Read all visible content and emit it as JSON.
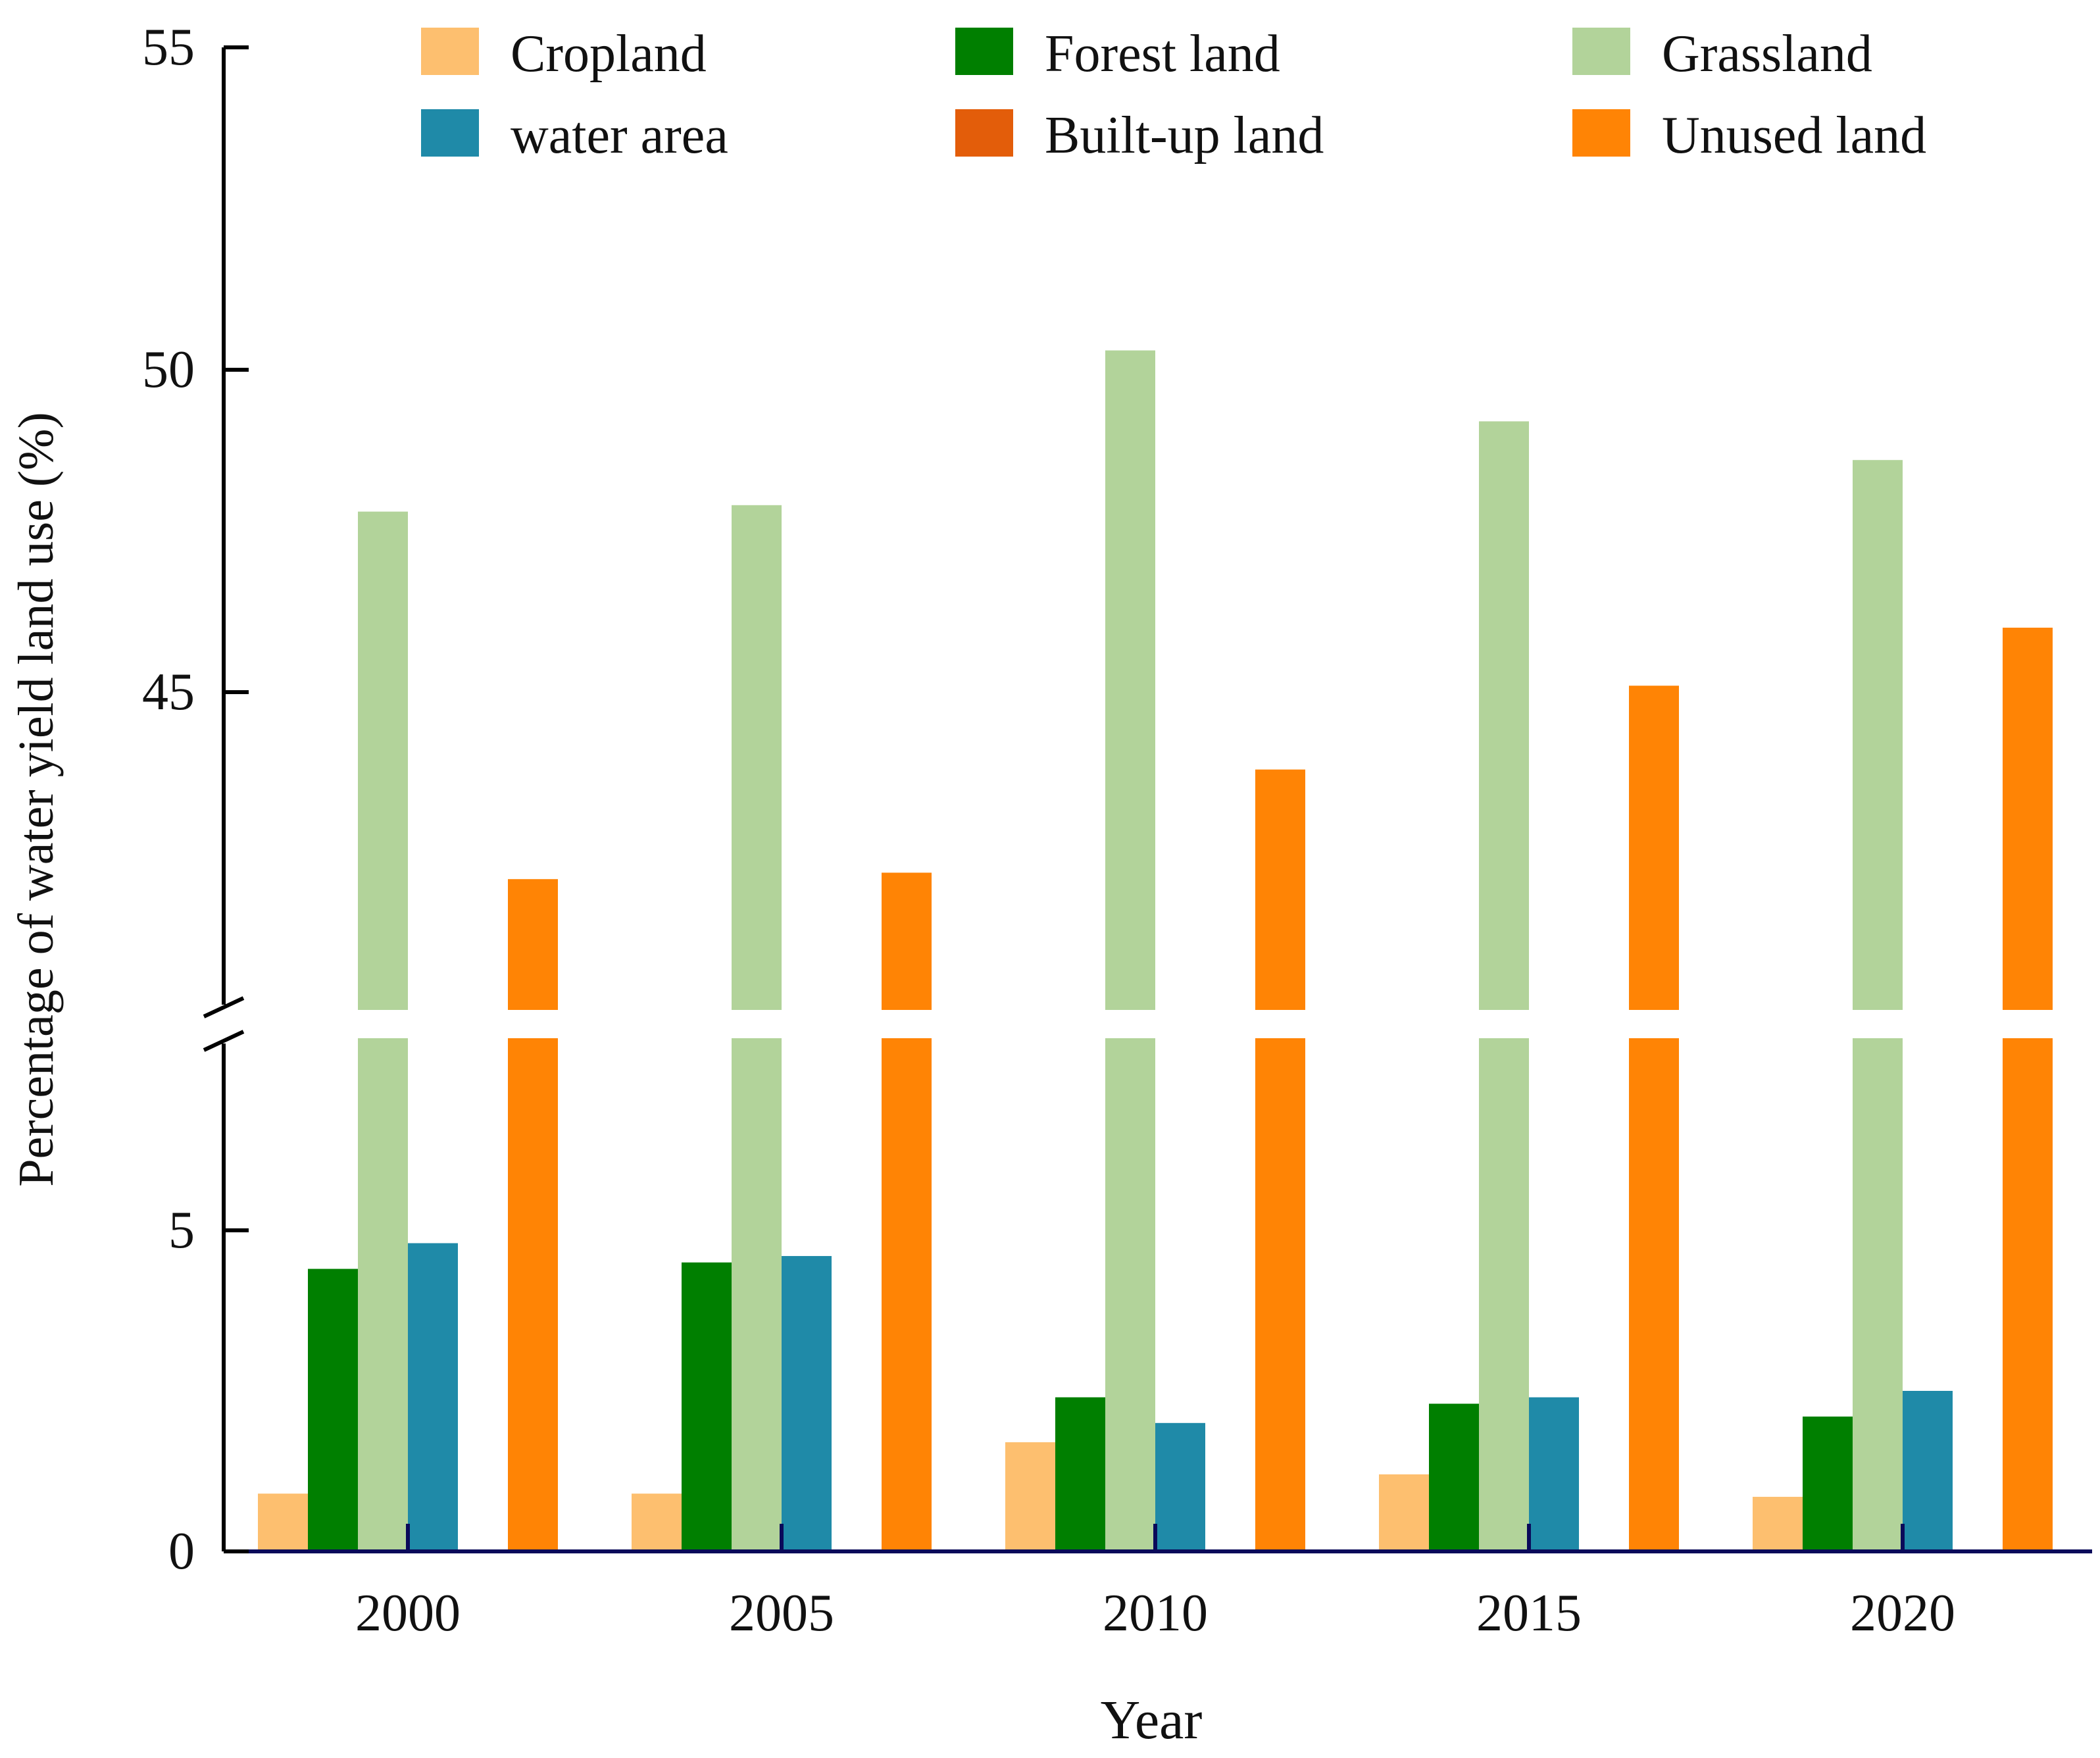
{
  "chart_data": {
    "type": "bar",
    "title": "",
    "xlabel": "Year",
    "ylabel": "Percentage of water yield land use (%)",
    "categories": [
      "2000",
      "2005",
      "2010",
      "2015",
      "2020"
    ],
    "axis_break": {
      "lower_range": [
        0,
        8
      ],
      "upper_range": [
        40,
        55
      ]
    },
    "y_ticks": [
      0,
      5,
      45,
      50,
      55
    ],
    "legend_position": "top",
    "series": [
      {
        "name": "Cropland",
        "color": "#FDBF6F",
        "values": [
          0.9,
          0.9,
          1.7,
          1.2,
          0.85
        ]
      },
      {
        "name": "Forest land",
        "color": "#007F00",
        "values": [
          4.4,
          4.5,
          2.4,
          2.3,
          2.1
        ]
      },
      {
        "name": "Grassland",
        "color": "#B2D39A",
        "values": [
          47.8,
          47.9,
          50.3,
          49.2,
          48.6
        ]
      },
      {
        "name": "water area",
        "color": "#1F8AA8",
        "values": [
          4.8,
          4.6,
          2.0,
          2.4,
          2.5
        ]
      },
      {
        "name": "Built-up land",
        "color": "#E35D0A",
        "values": [
          0,
          0,
          0,
          0,
          0
        ]
      },
      {
        "name": "Unused land",
        "color": "#FF8405",
        "values": [
          42.1,
          42.2,
          43.8,
          45.1,
          46.0
        ]
      }
    ]
  }
}
